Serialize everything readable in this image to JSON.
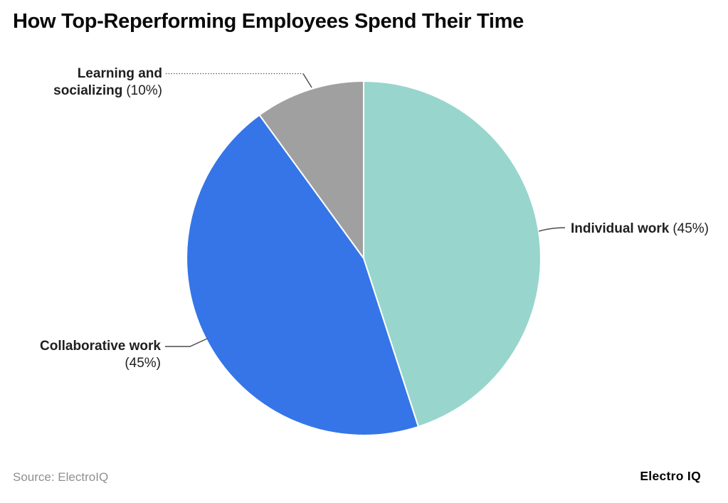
{
  "title": "How Top-Reperforming Employees Spend Their Time",
  "source_note": "Source: ElectroIQ",
  "brand": "Electro IQ",
  "chart_data": {
    "type": "pie",
    "title": "How Top-Reperforming Employees Spend Their Time",
    "start_angle_deg": 0,
    "direction": "clockwise",
    "legend_position": "outside-labels-with-leader-lines",
    "slices": [
      {
        "label": "Individual work",
        "value": 45,
        "unit": "%",
        "color": "#98d5cd"
      },
      {
        "label": "Collaborative work",
        "value": 45,
        "unit": "%",
        "color": "#3575e8"
      },
      {
        "label": "Learning and socializing",
        "value": 10,
        "unit": "%",
        "color": "#a0a0a0"
      }
    ],
    "slice_border_color": "#ffffff"
  },
  "labels": {
    "learning": {
      "line1": "Learning and",
      "line2_name": "socializing",
      "line2_pct": "(10%)"
    },
    "individual": {
      "name": "Individual work",
      "pct": "(45%)"
    },
    "collaborative": {
      "line1": "Collaborative work",
      "line2": "(45%)"
    }
  }
}
